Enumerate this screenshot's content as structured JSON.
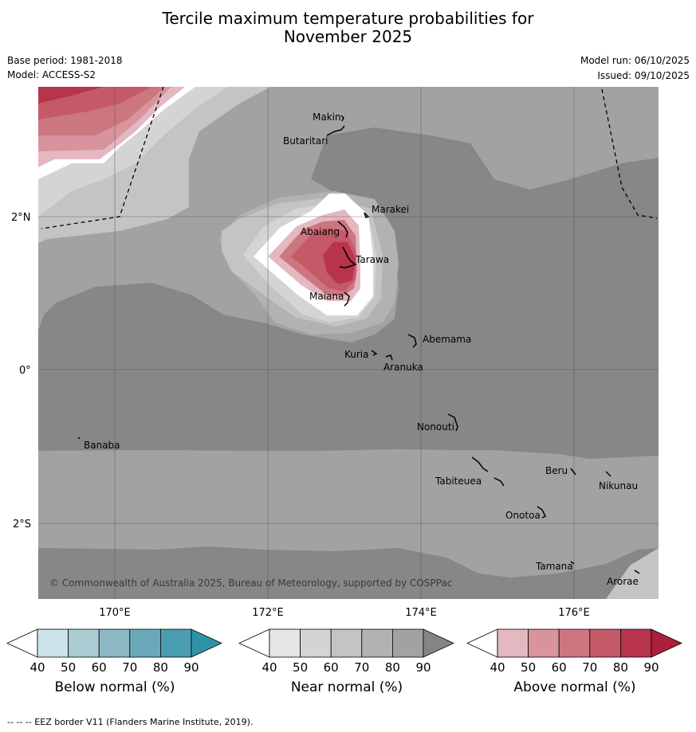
{
  "title_line1": "Tercile maximum temperature probabilities for",
  "title_line2": "November 2025",
  "base_period": "Base period: 1981-2018",
  "model": "Model: ACCESS-S2",
  "model_run": "Model run: 06/10/2025",
  "issued": "Issued: 09/10/2025",
  "copyright": "© Commonwealth of Australia 2025, Bureau of Meteorology, supported by COSPPac",
  "footer": "--  --  -- EEZ border V11 (Flanders Marine Institute, 2019).",
  "lat_labels": [
    "2°N",
    "0°",
    "2°S"
  ],
  "lon_labels": [
    "170°E",
    "172°E",
    "174°E",
    "176°E"
  ],
  "places": [
    "Makin",
    "Butaritari",
    "Marakei",
    "Abaiang",
    "Tarawa",
    "Maiana",
    "Abemama",
    "Kuria",
    "Aranuka",
    "Nonouti",
    "Banaba",
    "Beru",
    "Nikunau",
    "Tabiteuea",
    "Onotoa",
    "Tamana",
    "Arorae"
  ],
  "colorbars": [
    {
      "label": "Below normal (%)",
      "ticks": [
        "40",
        "50",
        "60",
        "70",
        "80",
        "90"
      ],
      "colors": [
        "#ffffff",
        "#cde3ea",
        "#aacbd2",
        "#8cb8c4",
        "#6aa9b9",
        "#4a9db0",
        "#2f93a8"
      ]
    },
    {
      "label": "Near normal (%)",
      "ticks": [
        "40",
        "50",
        "60",
        "70",
        "80",
        "90"
      ],
      "colors": [
        "#ffffff",
        "#e6e6e6",
        "#d4d4d4",
        "#c4c4c4",
        "#b2b2b2",
        "#a2a2a2",
        "#858585"
      ]
    },
    {
      "label": "Above normal (%)",
      "ticks": [
        "40",
        "50",
        "60",
        "70",
        "80",
        "90"
      ],
      "colors": [
        "#ffffff",
        "#e4b8c0",
        "#d9939d",
        "#cc7680",
        "#c45a68",
        "#b8344c",
        "#ae1f3e"
      ]
    }
  ]
}
